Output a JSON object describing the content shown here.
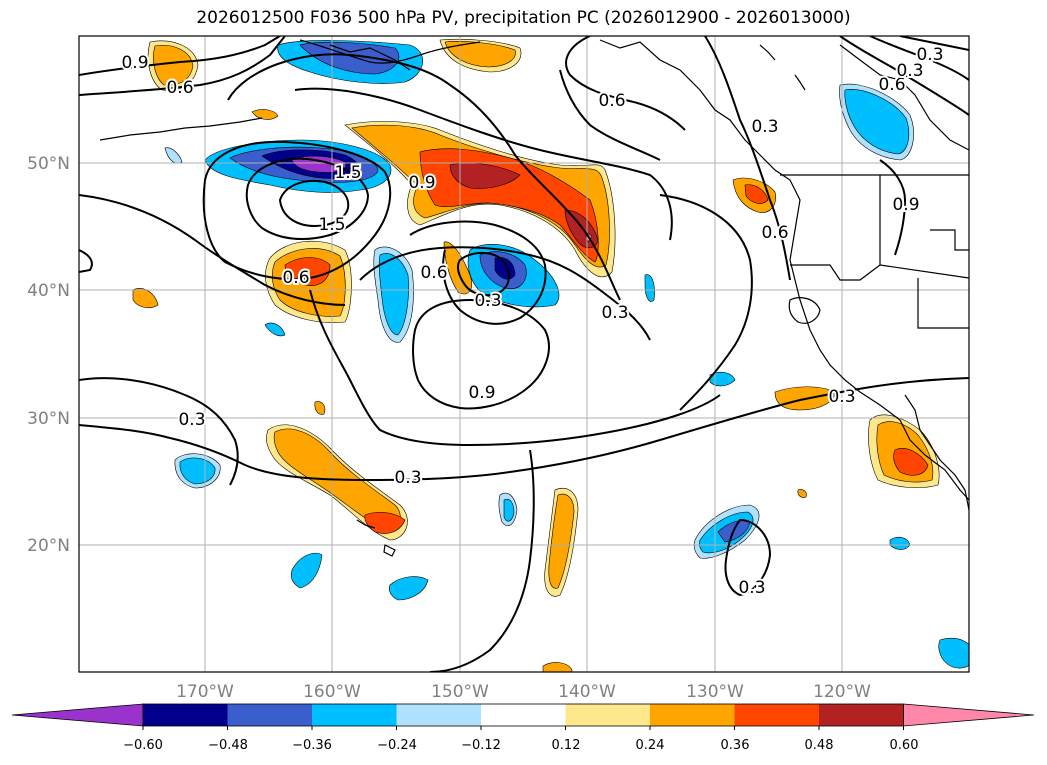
{
  "title": "2026012500 F036 500 hPa PV, precipitation PC (2026012900 - 2026013000)",
  "latitude_labels": [
    "50°N",
    "40°N",
    "30°N",
    "20°N"
  ],
  "longitude_labels": [
    "170°W",
    "160°W",
    "150°W",
    "140°W",
    "130°W",
    "120°W"
  ],
  "contour_labels": [
    "0.9",
    "0.6",
    "0.6",
    "0.3",
    "1.5",
    "0.9",
    "0.6",
    "0.9",
    "0.6",
    "1.5",
    "0.6",
    "0.3",
    "0.3",
    "0.9",
    "0.3",
    "0.3",
    "0.3",
    "0.6",
    "0.3",
    "0.3",
    "0.3"
  ],
  "colorbar": {
    "ticks": [
      "−0.60",
      "−0.48",
      "−0.36",
      "−0.24",
      "−0.12",
      "0.12",
      "0.24",
      "0.36",
      "0.48",
      "0.60"
    ],
    "colors": [
      "#9933cc",
      "#00008b",
      "#3a5fcd",
      "#00bfff",
      "#b0e2ff",
      "#ffffff",
      "#ffe88c",
      "#ffa500",
      "#ff4500",
      "#b22222",
      "#ff88aa"
    ]
  }
}
